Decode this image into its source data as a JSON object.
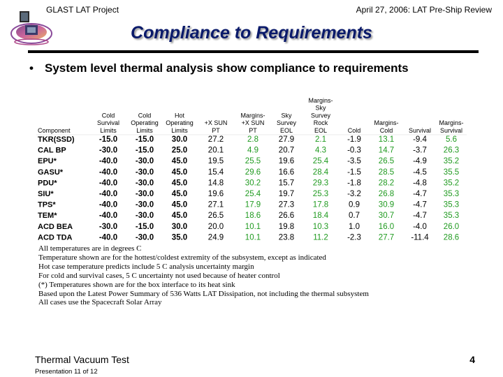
{
  "header": {
    "left": "GLAST LAT Project",
    "right": "April 27, 2006: LAT Pre-Ship Review"
  },
  "title": "Compliance to Requirements",
  "bullet": {
    "marker": "•",
    "text": "System level thermal analysis show compliance to requirements"
  },
  "table": {
    "columns": [
      [
        "Component"
      ],
      [
        "Cold",
        "Survival",
        "Limits"
      ],
      [
        "Cold",
        "Operating",
        "Limits"
      ],
      [
        "Hot",
        "Operating",
        "Limits"
      ],
      [
        "+X SUN",
        "PT"
      ],
      [
        "Margins-",
        "+X SUN",
        "PT"
      ],
      [
        "Sky",
        "Survey",
        "EOL"
      ],
      [
        "Margins-",
        "Sky",
        "Survey",
        "Rock",
        "EOL"
      ],
      [
        "Cold"
      ],
      [
        "Margins-",
        "Cold"
      ],
      [
        "Survival"
      ],
      [
        "Margins-",
        "Survival"
      ]
    ],
    "rows": [
      [
        "TKR(SSD)",
        "-15.0",
        "-15.0",
        "30.0",
        "27.2",
        "2.8",
        "27.9",
        "2.1",
        "-1.9",
        "13.1",
        "-9.4",
        "5.6"
      ],
      [
        "CAL BP",
        "-30.0",
        "-15.0",
        "25.0",
        "20.1",
        "4.9",
        "20.7",
        "4.3",
        "-0.3",
        "14.7",
        "-3.7",
        "26.3"
      ],
      [
        "EPU*",
        "-40.0",
        "-30.0",
        "45.0",
        "19.5",
        "25.5",
        "19.6",
        "25.4",
        "-3.5",
        "26.5",
        "-4.9",
        "35.2"
      ],
      [
        "GASU*",
        "-40.0",
        "-30.0",
        "45.0",
        "15.4",
        "29.6",
        "16.6",
        "28.4",
        "-1.5",
        "28.5",
        "-4.5",
        "35.5"
      ],
      [
        "PDU*",
        "-40.0",
        "-30.0",
        "45.0",
        "14.8",
        "30.2",
        "15.7",
        "29.3",
        "-1.8",
        "28.2",
        "-4.8",
        "35.2"
      ],
      [
        "SIU*",
        "-40.0",
        "-30.0",
        "45.0",
        "19.6",
        "25.4",
        "19.7",
        "25.3",
        "-3.2",
        "26.8",
        "-4.7",
        "35.3"
      ],
      [
        "TPS*",
        "-40.0",
        "-30.0",
        "45.0",
        "27.1",
        "17.9",
        "27.3",
        "17.8",
        "0.9",
        "30.9",
        "-4.7",
        "35.3"
      ],
      [
        "TEM*",
        "-40.0",
        "-30.0",
        "45.0",
        "26.5",
        "18.6",
        "26.6",
        "18.4",
        "0.7",
        "30.7",
        "-4.7",
        "35.3"
      ],
      [
        "ACD BEA",
        "-30.0",
        "-15.0",
        "30.0",
        "20.0",
        "10.1",
        "19.8",
        "10.3",
        "1.0",
        "16.0",
        "-4.0",
        "26.0"
      ],
      [
        "ACD TDA",
        "-40.0",
        "-30.0",
        "35.0",
        "24.9",
        "10.1",
        "23.8",
        "11.2",
        "-2.3",
        "27.7",
        "-11.4",
        "28.6"
      ]
    ],
    "margin_columns": [
      5,
      7,
      9,
      11
    ],
    "colors": {
      "margin_text": "#1f9a1f",
      "value_text": "#000000",
      "header_text": "#000000"
    }
  },
  "notes": [
    "All temperatures are in degrees C",
    "Temperature shown are for the hottest/coldest extremity of the subsystem, except as indicated",
    "Hot case temperature predicts include 5 C analysis uncertainty margin",
    "For cold and survival cases, 5 C uncertainty not used because of heater control",
    "(*) Temperatures shown are for the box interface to its heat sink",
    "Based upon the Latest Power Summary of 536 Watts LAT Dissipation, not including the thermal subsystem",
    "All cases use the Spacecraft Solar Array"
  ],
  "footer": {
    "title": "Thermal Vacuum Test",
    "presentation": "Presentation 11 of 12",
    "page": "4"
  }
}
